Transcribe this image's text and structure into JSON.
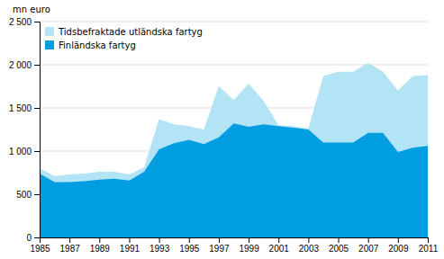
{
  "chart_data": {
    "type": "area",
    "ylabel": "mn euro",
    "x": [
      1985,
      1986,
      1987,
      1988,
      1989,
      1990,
      1991,
      1992,
      1993,
      1994,
      1995,
      1996,
      1997,
      1998,
      1999,
      2000,
      2001,
      2002,
      2003,
      2004,
      2005,
      2006,
      2007,
      2008,
      2009,
      2010,
      2011
    ],
    "series": [
      {
        "name": "Tidsbefraktade utländska fartyg",
        "color": "#b3e4f5",
        "values": [
          800,
          710,
          730,
          740,
          760,
          760,
          730,
          810,
          1370,
          1310,
          1290,
          1250,
          1750,
          1590,
          1780,
          1580,
          1300,
          1290,
          1260,
          1870,
          1920,
          1920,
          2020,
          1920,
          1700,
          1870,
          1880
        ]
      },
      {
        "name": "Finländska fartyg",
        "color": "#009ee0",
        "values": [
          740,
          640,
          640,
          650,
          670,
          680,
          660,
          760,
          1020,
          1090,
          1130,
          1080,
          1160,
          1320,
          1280,
          1310,
          1290,
          1270,
          1250,
          1100,
          1100,
          1100,
          1210,
          1210,
          990,
          1040,
          1060
        ]
      }
    ],
    "xlim": [
      1985,
      2011
    ],
    "xticks": [
      1985,
      1987,
      1989,
      1991,
      1993,
      1995,
      1997,
      1999,
      2001,
      2003,
      2005,
      2007,
      2009,
      2011
    ],
    "ylim": [
      0,
      2500
    ],
    "yticks": [
      0,
      500,
      {
        "value": 1000,
        "label": "1 000"
      },
      {
        "value": 1500,
        "label": "1 500"
      },
      {
        "value": 2000,
        "label": "2 000"
      },
      {
        "value": 2500,
        "label": "2 500"
      }
    ],
    "grid": true,
    "legend": "upper left"
  }
}
